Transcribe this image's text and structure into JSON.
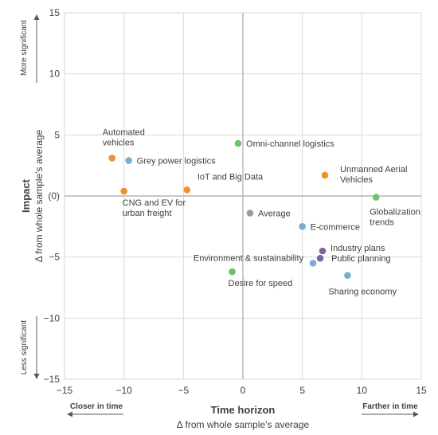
{
  "chart_data": {
    "type": "scatter",
    "xlabel": "Time horizon",
    "xlabel_sub": "Δ from whole sample's average",
    "ylabel": "Impact",
    "ylabel_sub": "Δ from whole sample's average",
    "xlim": [
      -15,
      15
    ],
    "ylim": [
      -15,
      15
    ],
    "x_ticks": [
      -15,
      -10,
      -5,
      0,
      5,
      10,
      15
    ],
    "y_ticks": [
      -15,
      -10,
      -5,
      0,
      5,
      10,
      15
    ],
    "x_tick_labels": [
      "−15",
      "−10",
      "−5",
      "0",
      "5",
      "10",
      "15"
    ],
    "y_tick_labels": [
      "−15",
      "−10",
      "−5",
      "(0)",
      "5",
      "10",
      "15"
    ],
    "grid": true,
    "annotations": {
      "top": "More significant",
      "bottom": "Less significant",
      "left": "Closer in time",
      "right": "Farther in time"
    },
    "colors": {
      "orange": "#f28e2b",
      "blue": "#7aaed0",
      "green": "#6cc26a",
      "gray": "#9a9a9a",
      "purple": "#8064a2",
      "grid": "#d9d9d9",
      "axis": "#a6a6a6",
      "text": "#404040"
    },
    "points": [
      {
        "label": "Automated vehicles",
        "label_lines": [
          "Automated",
          "vehicles"
        ],
        "x": -11.0,
        "y": 3.1,
        "color": "orange"
      },
      {
        "label": "Grey power logistics",
        "label_lines": [
          "Grey power logistics"
        ],
        "x": -9.6,
        "y": 2.9,
        "color": "blue"
      },
      {
        "label": "CNG and EV for urban freight",
        "label_lines": [
          "CNG and EV for",
          "urban freight"
        ],
        "x": -10.0,
        "y": 0.4,
        "color": "orange"
      },
      {
        "label": "IoT and Big Data",
        "label_lines": [
          "IoT and Big Data"
        ],
        "x": -4.7,
        "y": 0.5,
        "color": "orange"
      },
      {
        "label": "Omni-channel logistics",
        "label_lines": [
          "Omni-channel logistics"
        ],
        "x": -0.4,
        "y": 4.3,
        "color": "green"
      },
      {
        "label": "Unmanned Aerial Vehicles",
        "label_lines": [
          "Unmanned Aerial",
          "Vehicles"
        ],
        "x": 6.9,
        "y": 1.7,
        "color": "orange"
      },
      {
        "label": "Globalization trends",
        "label_lines": [
          "Globalization",
          "trends"
        ],
        "x": 11.2,
        "y": -0.1,
        "color": "green"
      },
      {
        "label": "Average",
        "label_lines": [
          "Average"
        ],
        "x": 0.6,
        "y": -1.4,
        "color": "gray"
      },
      {
        "label": "E-commerce",
        "label_lines": [
          "E-commerce"
        ],
        "x": 5.0,
        "y": -2.5,
        "color": "blue"
      },
      {
        "label": "Industry plans",
        "label_lines": [
          "Industry plans"
        ],
        "x": 6.7,
        "y": -4.5,
        "color": "purple"
      },
      {
        "label": "Public planning",
        "label_lines": [
          "Public planning"
        ],
        "x": 6.5,
        "y": -5.1,
        "color": "purple"
      },
      {
        "label": "Environment & sustainability",
        "label_lines": [
          "Environment & sustainability"
        ],
        "x": 5.9,
        "y": -5.5,
        "color": "blue"
      },
      {
        "label": "Desire for speed",
        "label_lines": [
          "Desire for speed"
        ],
        "x": -0.9,
        "y": -6.2,
        "color": "green"
      },
      {
        "label": "Sharing economy",
        "label_lines": [
          "Sharing economy"
        ],
        "x": 8.8,
        "y": -6.5,
        "color": "blue"
      }
    ]
  }
}
